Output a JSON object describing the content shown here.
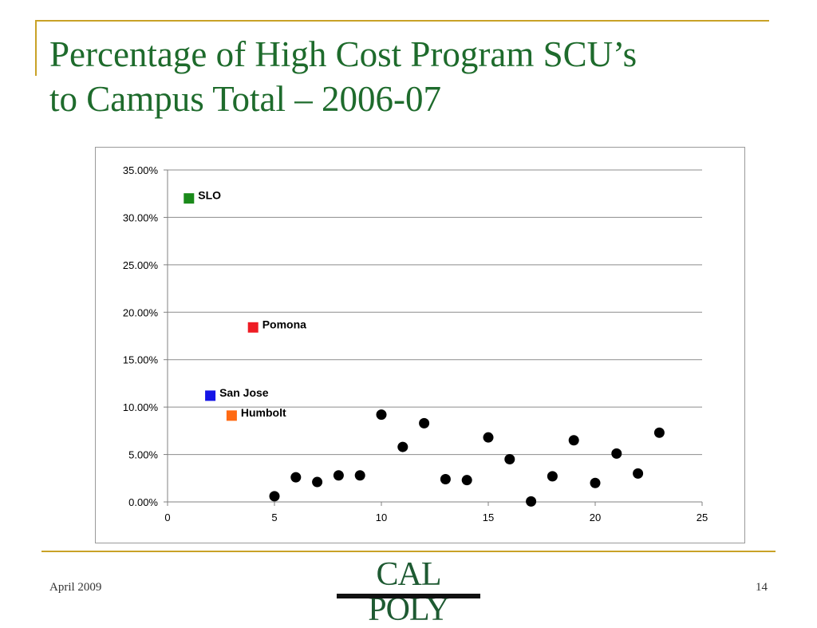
{
  "slide": {
    "title_line1": "Percentage of High Cost Program SCU’s",
    "title_line2": "to Campus Total – 2006-07",
    "footer_date": "April 2009",
    "page_number": "14",
    "logo_text": "CAL POLY"
  },
  "colors": {
    "title": "#1e6b2c",
    "accent_rule": "#c9a227",
    "SLO": "#1a8a1a",
    "Pomona": "#ee1c24",
    "San Jose": "#1414e6",
    "Humbolt": "#ff6a13",
    "other_campuses": "#000000"
  },
  "chart_data": {
    "type": "scatter",
    "xlim": [
      0,
      25
    ],
    "ylim": [
      0,
      35
    ],
    "x_ticks": [
      "0",
      "5",
      "10",
      "15",
      "20",
      "25"
    ],
    "y_ticks": [
      "0.00%",
      "5.00%",
      "10.00%",
      "15.00%",
      "20.00%",
      "25.00%",
      "30.00%",
      "35.00%"
    ],
    "grid": "horizontal",
    "labeled_points": [
      {
        "label": "SLO",
        "x": 1,
        "y": 32.0,
        "marker": "square"
      },
      {
        "label": "San Jose",
        "x": 2,
        "y": 11.2,
        "marker": "square"
      },
      {
        "label": "Humbolt",
        "x": 3,
        "y": 9.1,
        "marker": "square"
      },
      {
        "label": "Pomona",
        "x": 4,
        "y": 18.4,
        "marker": "square"
      }
    ],
    "points": [
      {
        "x": 5,
        "y": 0.6
      },
      {
        "x": 6,
        "y": 2.6
      },
      {
        "x": 7,
        "y": 2.1
      },
      {
        "x": 8,
        "y": 2.8
      },
      {
        "x": 9,
        "y": 2.8
      },
      {
        "x": 10,
        "y": 9.2
      },
      {
        "x": 11,
        "y": 5.8
      },
      {
        "x": 12,
        "y": 8.3
      },
      {
        "x": 13,
        "y": 2.4
      },
      {
        "x": 14,
        "y": 2.3
      },
      {
        "x": 15,
        "y": 6.8
      },
      {
        "x": 16,
        "y": 4.5
      },
      {
        "x": 17,
        "y": 0.05
      },
      {
        "x": 18,
        "y": 2.7
      },
      {
        "x": 19,
        "y": 6.5
      },
      {
        "x": 20,
        "y": 2.0
      },
      {
        "x": 21,
        "y": 5.1
      },
      {
        "x": 22,
        "y": 3.0
      },
      {
        "x": 23,
        "y": 7.3
      }
    ]
  }
}
